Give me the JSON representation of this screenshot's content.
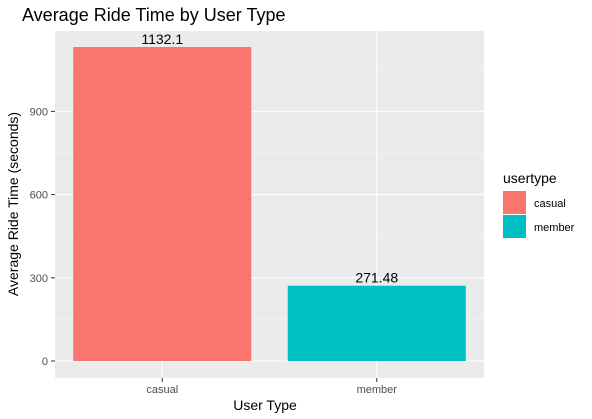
{
  "chart_data": {
    "type": "bar",
    "title": "Average Ride Time by User Type",
    "xlabel": "User Type",
    "ylabel": "Average Ride Time (seconds)",
    "categories": [
      "casual",
      "member"
    ],
    "values": [
      1132.1,
      271.48
    ],
    "value_labels": [
      "1132.1",
      "271.48"
    ],
    "colors": [
      "#F8766D",
      "#00BFC4"
    ],
    "ylim": [
      0,
      1190
    ],
    "yticks": [
      0,
      300,
      600,
      900
    ],
    "ytick_labels": [
      "0",
      "300",
      "600",
      "900"
    ],
    "grid": true,
    "legend": {
      "title": "usertype",
      "placement": "right",
      "entries": [
        "casual",
        "member"
      ]
    },
    "panel_background": "#EBEBEB"
  }
}
